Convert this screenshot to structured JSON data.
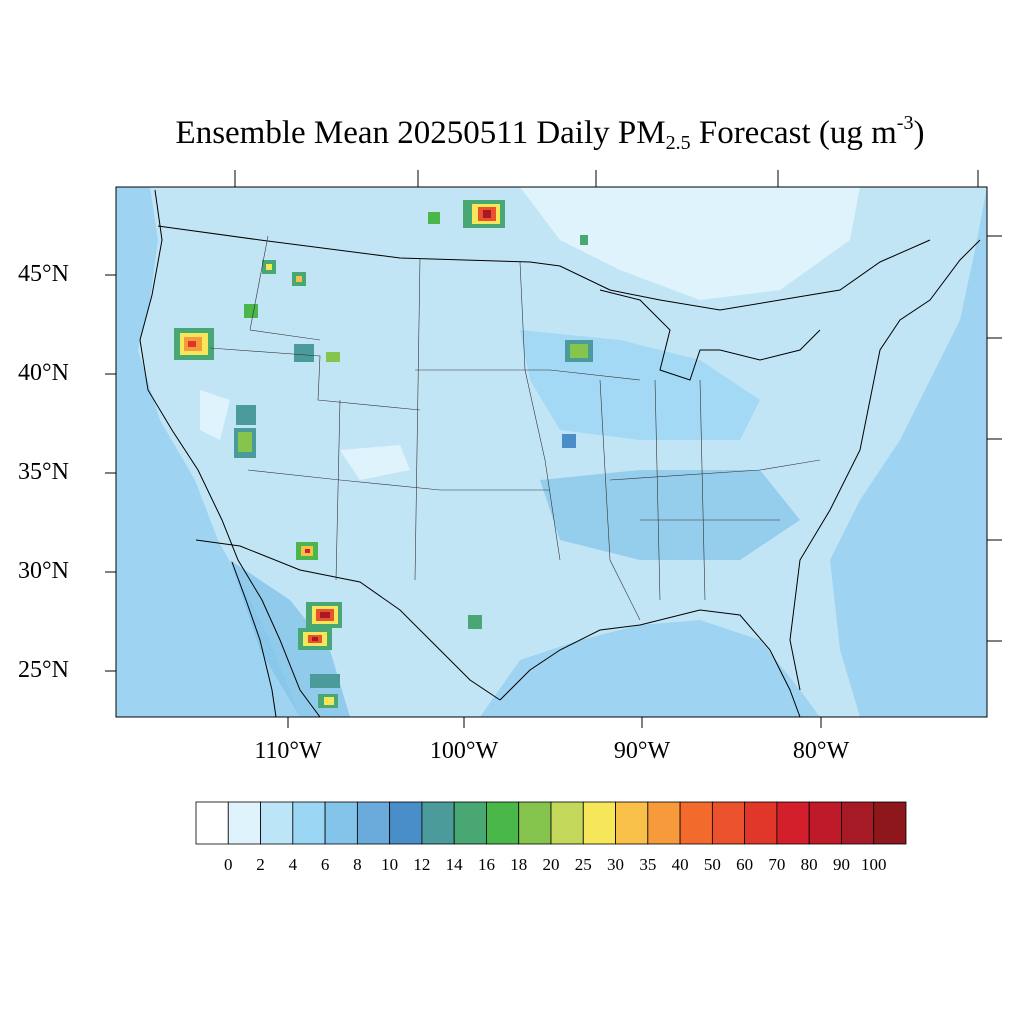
{
  "title": {
    "main": "Ensemble Mean 20250511 Daily PM",
    "sub": "2.5",
    "after": " Forecast (ug m",
    "sup": "-3",
    "close": ")"
  },
  "map": {
    "lat_labels": [
      "45°N",
      "40°N",
      "35°N",
      "30°N",
      "25°N"
    ],
    "lon_labels": [
      "110°W",
      "100°W",
      "90°W",
      "80°W"
    ],
    "background_color": "#c2e5f6",
    "ocean_color": "#9ed4f1"
  },
  "colorbar": {
    "colors": [
      "#ffffff",
      "#def3fc",
      "#bde5f8",
      "#9bd6f4",
      "#85c4ea",
      "#6aabdc",
      "#4a8ec9",
      "#4a9b9a",
      "#48a773",
      "#49b749",
      "#85c54d",
      "#c3d75a",
      "#f6e65a",
      "#f8bf49",
      "#f79a3b",
      "#f36b2c",
      "#eb512d",
      "#e0372a",
      "#d31f2b",
      "#bf1a29",
      "#a51a24",
      "#8e171c"
    ],
    "labels": [
      "0",
      "2",
      "4",
      "6",
      "8",
      "10",
      "12",
      "14",
      "16",
      "18",
      "20",
      "25",
      "30",
      "35",
      "40",
      "50",
      "60",
      "70",
      "80",
      "90",
      "100"
    ]
  }
}
